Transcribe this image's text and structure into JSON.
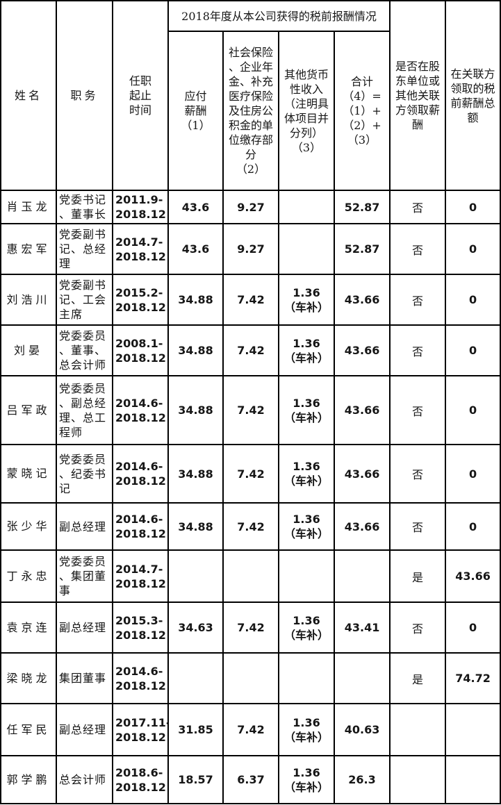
{
  "colors": {
    "border": "#000000",
    "text": "#161616",
    "background": "#ffffff"
  },
  "table": {
    "top_header": "2018年度从本公司获得的税前报酬情况",
    "headers": {
      "name": "姓名",
      "position": "职务",
      "term": "任职\n起止\n时间",
      "payable": "应付\n薪酬\n（1）",
      "social_insurance": "社会保险\n、企业年\n金、补充\n医疗保险\n及住房公\n积金的单\n位缴存部\n分\n（2）",
      "other_income": "其他货币\n性收入\n（注明具\n体项目并\n分列）\n（3）",
      "total": "合计\n（4）=\n（1）+\n（2）+\n（3）",
      "related_flag": "是否在股东单位或其他关联方领取薪酬",
      "related_amount": "在关联方\n领取的税\n前薪酬总\n额"
    },
    "rows": [
      {
        "name": "肖玉龙",
        "position": "党委书记、董事长",
        "term": "2011.9-\n2018.12",
        "payable": "43.6",
        "social": "9.27",
        "other": "",
        "total": "52.87",
        "flag": "否",
        "amount": "0"
      },
      {
        "name": "惠宏军",
        "position": "党委副书记、总经理",
        "term": "2014.7-\n2018.12",
        "payable": "43.6",
        "social": "9.27",
        "other": "",
        "total": "52.87",
        "flag": "否",
        "amount": "0"
      },
      {
        "name": "刘浩川",
        "position": "党委副书记、工会主席",
        "term": "2015.2-\n2018.12",
        "payable": "34.88",
        "social": "7.42",
        "other": "1.36\n（车补）",
        "total": "43.66",
        "flag": "否",
        "amount": "0"
      },
      {
        "name": "刘晏",
        "position": "党委委员、董事、总会计师",
        "term": "2008.1-\n2018.12",
        "payable": "34.88",
        "social": "7.42",
        "other": "1.36\n（车补）",
        "total": "43.66",
        "flag": "否",
        "amount": "0"
      },
      {
        "name": "吕军政",
        "position": "党委委员、副总经理、总工程师",
        "term": "2014.6-\n2018.12",
        "payable": "34.88",
        "social": "7.42",
        "other": "1.36\n（车补）",
        "total": "43.66",
        "flag": "否",
        "amount": "0"
      },
      {
        "name": "蒙晓记",
        "position": "党委委员、纪委书记",
        "term": "2014.6-\n2018.12",
        "payable": "34.88",
        "social": "7.42",
        "other": "1.36\n（车补）",
        "total": "43.66",
        "flag": "否",
        "amount": "0"
      },
      {
        "name": "张少华",
        "position": "副总经理",
        "term": "2014.6-\n2018.12",
        "payable": "34.88",
        "social": "7.42",
        "other": "1.36\n（车补）",
        "total": "43.66",
        "flag": "否",
        "amount": "0"
      },
      {
        "name": "丁永忠",
        "position": "党委委员、集团董事",
        "term": "2014.7-\n2018.12",
        "payable": "",
        "social": "",
        "other": "",
        "total": "",
        "flag": "是",
        "amount": "43.66"
      },
      {
        "name": "袁京连",
        "position": "副总经理",
        "term": "2015.3-\n2018.12",
        "payable": "34.63",
        "social": "7.42",
        "other": "1.36\n（车补）",
        "total": "43.41",
        "flag": "否",
        "amount": "0"
      },
      {
        "name": "梁晓龙",
        "position": "集团董事",
        "term": "2014.6-\n2018.12",
        "payable": "",
        "social": "",
        "other": "",
        "total": "",
        "flag": "是",
        "amount": "74.72"
      },
      {
        "name": "任军民",
        "position": "副总经理",
        "term": "2017.11-\n2018.12",
        "payable": "31.85",
        "social": "7.42",
        "other": "1.36\n（车补）",
        "total": "40.63",
        "flag": "",
        "amount": ""
      },
      {
        "name": "郭学鹏",
        "position": "总会计师",
        "term": "2018.6-\n2018.12",
        "payable": "18.57",
        "social": "6.37",
        "other": "1.36\n（车补）",
        "total": "26.3",
        "flag": "",
        "amount": ""
      }
    ]
  }
}
